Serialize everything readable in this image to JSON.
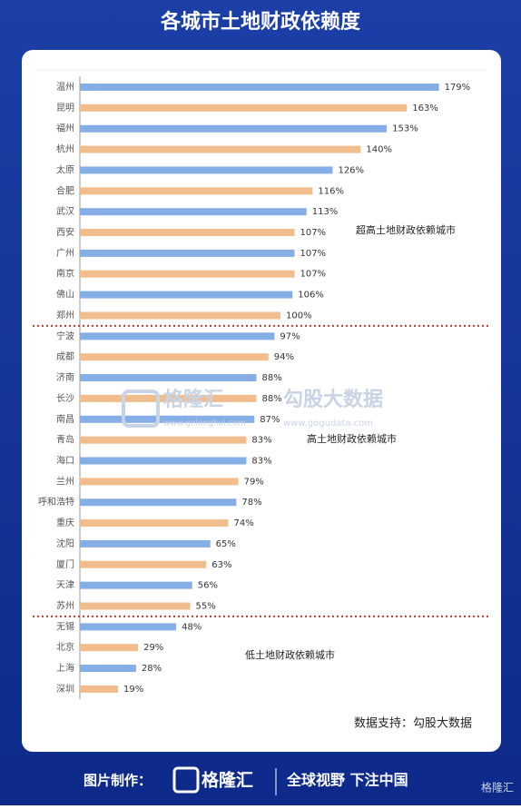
{
  "chart_data": {
    "type": "bar",
    "orientation": "horizontal",
    "title": "各城市土地财政依赖度",
    "categories": [
      "温州",
      "昆明",
      "福州",
      "杭州",
      "太原",
      "合肥",
      "武汉",
      "西安",
      "广州",
      "南京",
      "佛山",
      "郑州",
      "宁波",
      "成都",
      "济南",
      "长沙",
      "南昌",
      "青岛",
      "海口",
      "兰州",
      "呼和浩特",
      "重庆",
      "沈阳",
      "厦门",
      "天津",
      "苏州",
      "无锡",
      "北京",
      "上海",
      "深圳"
    ],
    "values": [
      179,
      163,
      153,
      140,
      126,
      116,
      113,
      107,
      107,
      107,
      106,
      100,
      97,
      94,
      88,
      88,
      87,
      83,
      83,
      79,
      78,
      74,
      65,
      63,
      56,
      55,
      48,
      29,
      28,
      19
    ],
    "value_labels": [
      "179%",
      "163%",
      "153%",
      "140%",
      "126%",
      "116%",
      "113%",
      "107%",
      "107%",
      "107%",
      "106%",
      "100%",
      "97%",
      "94%",
      "88%",
      "88%",
      "87%",
      "83%",
      "83%",
      "79%",
      "78%",
      "74%",
      "65%",
      "63%",
      "56%",
      "55%",
      "48%",
      "29%",
      "28%",
      "19%"
    ],
    "colors": [
      "#86aee6",
      "#f2bd8c"
    ],
    "xlim": [
      0,
      200
    ],
    "annotations": [
      "超高土地财政依赖城市",
      "高土地财政依赖城市",
      "低土地财政依赖城市"
    ],
    "source": "数据支持：勾股大数据"
  },
  "watermarks": [
    "格隆汇",
    "www.gelonghui.com",
    "勾股大数据",
    "www.gogudata.com"
  ],
  "footer": {
    "maker": "图片制作：",
    "logo": "格隆汇",
    "slogan": "全球视野 下注中国",
    "corner_logo": "格隆汇"
  }
}
